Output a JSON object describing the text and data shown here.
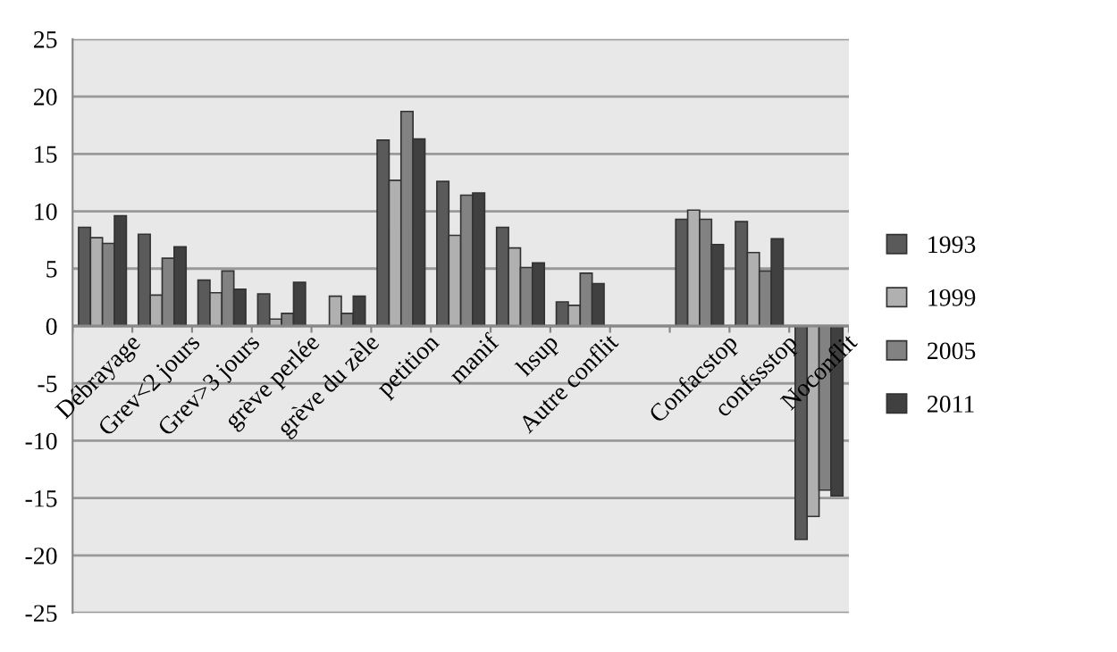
{
  "chart_data": {
    "type": "bar",
    "categories": [
      "Débrayage",
      "Grev<2 jours",
      "Grev>3 jours",
      "grève perlée",
      "grève du zèle",
      "petition",
      "manif",
      "hsup",
      "Autre conflit",
      null,
      "Confacstop",
      "confssstop",
      "Noconflit"
    ],
    "series": [
      {
        "name": "1993",
        "color": "#5a5a5a",
        "values": [
          8.6,
          8.0,
          4.0,
          2.8,
          null,
          16.2,
          12.6,
          8.6,
          2.1,
          null,
          9.3,
          9.1,
          -18.6
        ]
      },
      {
        "name": "1999",
        "color": "#b0b0b0",
        "values": [
          7.7,
          2.7,
          2.9,
          0.6,
          2.6,
          12.7,
          7.9,
          6.8,
          1.8,
          null,
          10.1,
          6.4,
          -16.6
        ]
      },
      {
        "name": "2005",
        "color": "#828282",
        "values": [
          7.2,
          5.9,
          4.8,
          1.1,
          1.1,
          18.7,
          11.4,
          5.1,
          4.6,
          null,
          9.3,
          4.8,
          -14.3
        ]
      },
      {
        "name": "2011",
        "color": "#404040",
        "values": [
          9.6,
          6.9,
          3.2,
          3.8,
          2.6,
          16.3,
          11.6,
          5.5,
          3.7,
          null,
          7.1,
          7.6,
          -14.8
        ]
      }
    ],
    "ylim": [
      -25,
      25
    ],
    "yticks": [
      -25,
      -20,
      -15,
      -10,
      -5,
      0,
      5,
      10,
      15,
      20,
      25
    ],
    "grid": "y",
    "legend": "right"
  }
}
